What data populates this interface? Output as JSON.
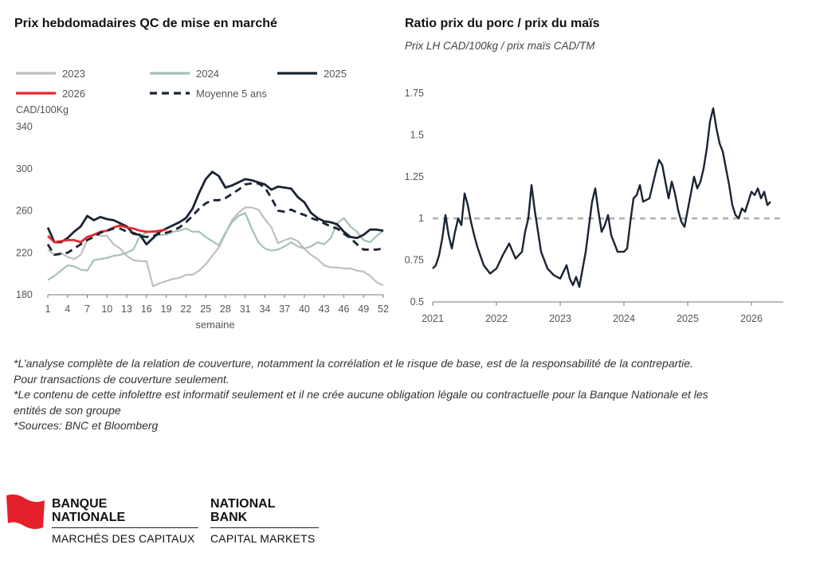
{
  "left_panel": {
    "title": "Prix hebdomadaires QC de mise en marché",
    "unit": "CAD/100Kg",
    "xaxis_label": "semaine"
  },
  "right_panel": {
    "title": "Ratio prix du porc / prix du maïs",
    "subtitle": "Prix LH CAD/100kg / prix maïs CAD/TM"
  },
  "chart_data": [
    {
      "type": "line",
      "title": "Prix hebdomadaires QC de mise en marché",
      "ylabel": "CAD/100Kg",
      "xlabel": "semaine",
      "xlim": [
        1,
        52
      ],
      "ylim": [
        180,
        340
      ],
      "yticks": [
        180,
        220,
        260,
        300,
        340
      ],
      "xticks": [
        1,
        4,
        7,
        10,
        13,
        16,
        19,
        22,
        25,
        28,
        31,
        34,
        37,
        40,
        43,
        46,
        49,
        52
      ],
      "legend_position": "top",
      "series": [
        {
          "name": "2023",
          "color": "#bfbfbf",
          "style": "solid",
          "x": [
            1,
            2,
            3,
            4,
            5,
            6,
            7,
            8,
            9,
            10,
            11,
            12,
            13,
            14,
            15,
            16,
            17,
            18,
            19,
            20,
            21,
            22,
            23,
            24,
            25,
            26,
            27,
            28,
            29,
            30,
            31,
            32,
            33,
            34,
            35,
            36,
            37,
            38,
            39,
            40,
            41,
            42,
            43,
            44,
            45,
            46,
            47,
            48,
            49,
            50,
            51,
            52
          ],
          "values": [
            223,
            218,
            220,
            216,
            214,
            218,
            232,
            238,
            236,
            236,
            228,
            224,
            217,
            213,
            212,
            212,
            188,
            191,
            193,
            195,
            196,
            199,
            199,
            203,
            209,
            217,
            225,
            238,
            251,
            258,
            263,
            263,
            261,
            252,
            244,
            229,
            232,
            234,
            231,
            224,
            218,
            214,
            208,
            206,
            206,
            205,
            205,
            203,
            202,
            198,
            192,
            189
          ]
        },
        {
          "name": "2024",
          "color": "#a5c2b5",
          "style": "solid",
          "x": [
            1,
            2,
            3,
            4,
            5,
            6,
            7,
            8,
            9,
            10,
            11,
            12,
            13,
            14,
            15,
            16,
            17,
            18,
            19,
            20,
            21,
            22,
            23,
            24,
            25,
            26,
            27,
            28,
            29,
            30,
            31,
            32,
            33,
            34,
            35,
            36,
            37,
            38,
            39,
            40,
            41,
            42,
            43,
            44,
            45,
            46,
            47,
            48,
            49,
            50,
            51,
            52
          ],
          "values": [
            194,
            198,
            203,
            208,
            207,
            204,
            203,
            213,
            214,
            215,
            217,
            218,
            220,
            223,
            236,
            239,
            241,
            237,
            237,
            240,
            241,
            243,
            240,
            240,
            235,
            231,
            227,
            239,
            249,
            255,
            258,
            243,
            230,
            224,
            222,
            223,
            226,
            230,
            226,
            224,
            226,
            230,
            228,
            234,
            248,
            253,
            245,
            240,
            232,
            230,
            236,
            241
          ]
        },
        {
          "name": "2025",
          "color": "#1a2433",
          "style": "solid",
          "x": [
            1,
            2,
            3,
            4,
            5,
            6,
            7,
            8,
            9,
            10,
            11,
            12,
            13,
            14,
            15,
            16,
            17,
            18,
            19,
            20,
            21,
            22,
            23,
            24,
            25,
            26,
            27,
            28,
            29,
            30,
            31,
            32,
            33,
            34,
            35,
            36,
            37,
            38,
            39,
            40,
            41,
            42,
            43,
            44,
            45,
            46,
            47,
            48,
            49,
            50,
            51,
            52
          ],
          "values": [
            244,
            230,
            230,
            234,
            240,
            245,
            255,
            251,
            254,
            252,
            251,
            248,
            245,
            238,
            237,
            228,
            234,
            240,
            243,
            246,
            249,
            253,
            262,
            277,
            290,
            297,
            293,
            282,
            284,
            287,
            290,
            289,
            287,
            285,
            280,
            283,
            282,
            281,
            273,
            268,
            258,
            253,
            250,
            249,
            247,
            240,
            235,
            234,
            237,
            242,
            242,
            241
          ]
        },
        {
          "name": "2026",
          "color": "#e8262c",
          "style": "solid",
          "x": [
            1,
            2,
            3,
            4,
            5,
            6,
            7,
            8,
            9,
            10,
            11,
            12,
            13,
            14,
            15,
            16,
            17,
            18,
            19
          ],
          "values": [
            236,
            230,
            231,
            232,
            232,
            230,
            235,
            237,
            240,
            241,
            244,
            246,
            244,
            243,
            241,
            240,
            240,
            241,
            242
          ]
        },
        {
          "name": "Moyenne 5 ans",
          "color": "#1a2433",
          "style": "dashed",
          "x": [
            1,
            2,
            3,
            4,
            5,
            6,
            7,
            8,
            9,
            10,
            11,
            12,
            13,
            14,
            15,
            16,
            17,
            18,
            19,
            20,
            21,
            22,
            23,
            24,
            25,
            26,
            27,
            28,
            29,
            30,
            31,
            32,
            33,
            34,
            35,
            36,
            37,
            38,
            39,
            40,
            41,
            42,
            43,
            44,
            45,
            46,
            47,
            48,
            49,
            50,
            51,
            52
          ],
          "values": [
            228,
            218,
            219,
            220,
            224,
            228,
            232,
            235,
            239,
            241,
            243,
            243,
            240,
            239,
            236,
            235,
            236,
            238,
            239,
            241,
            244,
            249,
            255,
            262,
            267,
            270,
            270,
            272,
            276,
            280,
            285,
            286,
            286,
            282,
            272,
            260,
            259,
            261,
            258,
            256,
            253,
            251,
            248,
            245,
            243,
            238,
            234,
            228,
            223,
            223,
            223,
            224
          ]
        }
      ]
    },
    {
      "type": "line",
      "title": "Ratio prix du porc / prix du maïs",
      "subtitle": "Prix LH CAD/100kg / prix maïs CAD/TM",
      "xlim": [
        2021.0,
        2026.5
      ],
      "ylim": [
        0.5,
        1.75
      ],
      "yticks": [
        0.5,
        0.75,
        1,
        1.25,
        1.5,
        1.75
      ],
      "ytick_labels": [
        "0.5",
        "0.75",
        "1",
        "1.25",
        "1.5",
        "1.75"
      ],
      "xticks": [
        2021,
        2022,
        2023,
        2024,
        2025,
        2026
      ],
      "reference_line": {
        "y": 1,
        "color": "#b0b0b0",
        "style": "dashed"
      },
      "series": [
        {
          "color": "#1a2433",
          "x": [
            2021.0,
            2021.05,
            2021.1,
            2021.15,
            2021.2,
            2021.25,
            2021.3,
            2021.35,
            2021.4,
            2021.45,
            2021.5,
            2021.55,
            2021.6,
            2021.65,
            2021.7,
            2021.8,
            2021.9,
            2022.0,
            2022.1,
            2022.2,
            2022.3,
            2022.4,
            2022.45,
            2022.5,
            2022.55,
            2022.6,
            2022.7,
            2022.8,
            2022.9,
            2023.0,
            2023.05,
            2023.1,
            2023.15,
            2023.2,
            2023.25,
            2023.3,
            2023.4,
            2023.5,
            2023.55,
            2023.6,
            2023.65,
            2023.7,
            2023.75,
            2023.8,
            2023.9,
            2024.0,
            2024.05,
            2024.1,
            2024.15,
            2024.2,
            2024.25,
            2024.3,
            2024.4,
            2024.5,
            2024.55,
            2024.6,
            2024.65,
            2024.7,
            2024.75,
            2024.8,
            2024.85,
            2024.9,
            2024.95,
            2025.0,
            2025.05,
            2025.1,
            2025.15,
            2025.2,
            2025.25,
            2025.3,
            2025.35,
            2025.4,
            2025.45,
            2025.5,
            2025.55,
            2025.6,
            2025.65,
            2025.7,
            2025.75,
            2025.8,
            2025.85,
            2025.9,
            2025.95,
            2026.0,
            2026.05,
            2026.1,
            2026.15,
            2026.2,
            2026.25,
            2026.3
          ],
          "values": [
            0.7,
            0.72,
            0.78,
            0.88,
            1.02,
            0.9,
            0.82,
            0.92,
            1.0,
            0.96,
            1.15,
            1.08,
            0.98,
            0.9,
            0.83,
            0.72,
            0.67,
            0.7,
            0.78,
            0.85,
            0.76,
            0.8,
            0.92,
            1.0,
            1.2,
            1.05,
            0.8,
            0.7,
            0.66,
            0.64,
            0.68,
            0.72,
            0.64,
            0.6,
            0.65,
            0.59,
            0.8,
            1.1,
            1.18,
            1.04,
            0.92,
            0.96,
            1.02,
            0.9,
            0.8,
            0.8,
            0.82,
            0.98,
            1.12,
            1.14,
            1.2,
            1.1,
            1.12,
            1.28,
            1.35,
            1.32,
            1.22,
            1.12,
            1.22,
            1.15,
            1.05,
            0.98,
            0.95,
            1.05,
            1.15,
            1.25,
            1.18,
            1.22,
            1.3,
            1.42,
            1.58,
            1.66,
            1.54,
            1.45,
            1.4,
            1.3,
            1.2,
            1.08,
            1.02,
            1.0,
            1.06,
            1.04,
            1.1,
            1.16,
            1.14,
            1.18,
            1.12,
            1.16,
            1.08,
            1.1
          ]
        }
      ]
    }
  ],
  "notes": [
    "*L’analyse complète de la relation de couverture, notamment la corrélation et le risque de base, est de la responsabilité de la contrepartie. Pour transactions de couverture seulement.",
    "*Le contenu de cette infolettre est informatif seulement et il ne crée aucune obligation légale ou contractuelle pour la Banque Nationale et les entités de son groupe",
    "*Sources: BNC et Bloomberg"
  ],
  "logo": {
    "fr_line1": "BANQUE",
    "fr_line2": "NATIONALE",
    "fr_sub": "MARCHÉS DES CAPITAUX",
    "en_line1": "NATIONAL",
    "en_line2": "BANK",
    "en_sub": "CAPITAL MARKETS",
    "flag_color": "#e4202b"
  }
}
